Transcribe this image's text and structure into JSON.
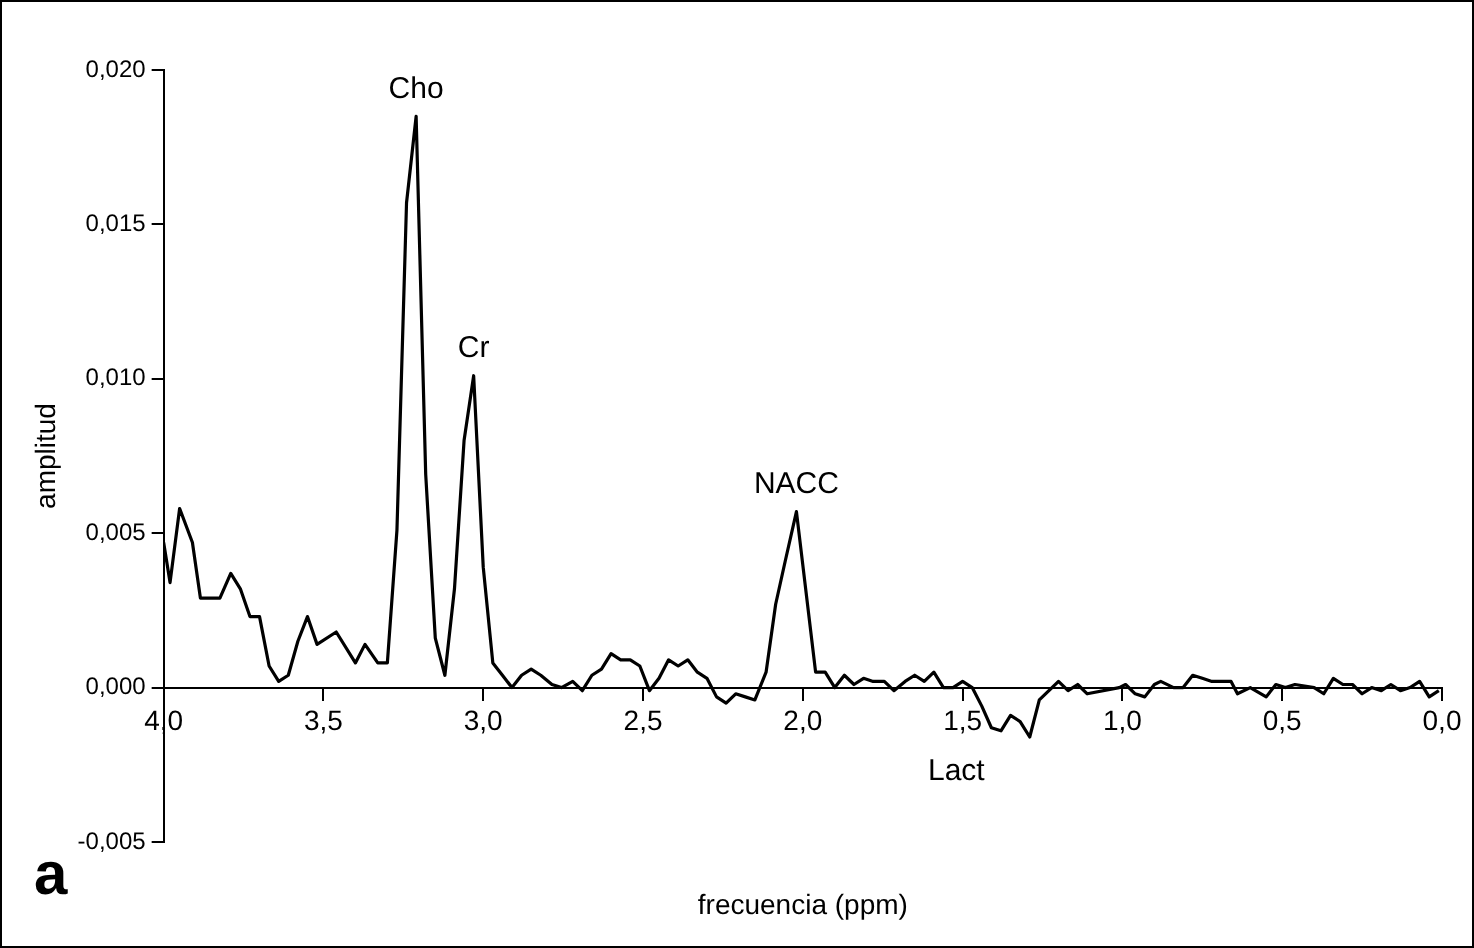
{
  "chart_data": {
    "type": "line",
    "xlabel": "frecuencia (ppm)",
    "ylabel": "amplitud",
    "x": [
      4.0,
      3.98,
      3.95,
      3.91,
      3.885,
      3.855,
      3.824,
      3.79,
      3.76,
      3.73,
      3.7,
      3.67,
      3.64,
      3.61,
      3.58,
      3.55,
      3.52,
      3.46,
      3.4,
      3.37,
      3.33,
      3.3,
      3.27,
      3.24,
      3.21,
      3.18,
      3.15,
      3.12,
      3.09,
      3.06,
      3.03,
      3.0,
      2.97,
      2.94,
      2.91,
      2.88,
      2.85,
      2.82,
      2.785,
      2.755,
      2.72,
      2.69,
      2.66,
      2.63,
      2.6,
      2.57,
      2.54,
      2.51,
      2.48,
      2.45,
      2.42,
      2.39,
      2.36,
      2.33,
      2.3,
      2.27,
      2.24,
      2.21,
      2.18,
      2.15,
      2.115,
      2.085,
      2.055,
      2.02,
      1.96,
      1.93,
      1.9,
      1.87,
      1.84,
      1.81,
      1.78,
      1.745,
      1.715,
      1.68,
      1.65,
      1.62,
      1.59,
      1.56,
      1.53,
      1.5,
      1.47,
      1.44,
      1.41,
      1.38,
      1.35,
      1.32,
      1.29,
      1.26,
      1.23,
      1.2,
      1.17,
      1.14,
      1.11,
      1.01,
      0.99,
      0.96,
      0.93,
      0.9,
      0.88,
      0.84,
      0.81,
      0.78,
      0.75,
      0.72,
      0.66,
      0.64,
      0.6,
      0.55,
      0.52,
      0.49,
      0.46,
      0.4,
      0.37,
      0.34,
      0.31,
      0.28,
      0.25,
      0.22,
      0.19,
      0.16,
      0.13,
      0.1,
      0.07,
      0.04,
      0.01
    ],
    "series": [
      {
        "color": "#000000",
        "values": [
          0.0047,
          0.0034,
          0.0058,
          0.0047,
          0.0029,
          0.0029,
          0.0029,
          0.0037,
          0.0032,
          0.0023,
          0.0023,
          0.0007,
          0.0002,
          0.0004,
          0.0015,
          0.0023,
          0.0014,
          0.0018,
          0.0008,
          0.0014,
          0.0008,
          0.0008,
          0.0051,
          0.0157,
          0.0185,
          0.0069,
          0.0016,
          0.0004,
          0.0032,
          0.008,
          0.0101,
          0.0039,
          0.0008,
          0.0004,
          0.0,
          0.0004,
          0.0006,
          0.0004,
          0.0001,
          0.0,
          0.0002,
          -0.0001,
          0.0004,
          0.0006,
          0.0011,
          0.0009,
          0.0009,
          0.0007,
          -0.0001,
          0.0003,
          0.0009,
          0.0007,
          0.0009,
          0.0005,
          0.0003,
          -0.0003,
          -0.0005,
          -0.0002,
          -0.0003,
          -0.0004,
          0.0005,
          0.0027,
          0.0041,
          0.0057,
          0.0005,
          0.0005,
          0.0,
          0.0004,
          0.0001,
          0.0003,
          0.0002,
          0.0002,
          -0.0001,
          0.0002,
          0.0004,
          0.0002,
          0.0005,
          0.0,
          0.0,
          0.0002,
          0.0,
          -0.0006,
          -0.0013,
          -0.0014,
          -0.0009,
          -0.0011,
          -0.0016,
          -0.0004,
          -0.0001,
          0.0002,
          -0.0001,
          0.0001,
          -0.0002,
          0.0,
          0.0001,
          -0.0002,
          -0.0003,
          0.0001,
          0.0002,
          0.0,
          0.0,
          0.0004,
          0.0003,
          0.0002,
          0.0002,
          -0.0002,
          0.0,
          -0.0003,
          0.0001,
          0.0,
          0.0001,
          0.0,
          -0.0002,
          0.0003,
          0.0001,
          0.0001,
          -0.0002,
          0.0,
          -0.0001,
          0.0001,
          -0.0001,
          0.0,
          0.0002,
          -0.0003,
          -0.0001
        ]
      }
    ],
    "xlim": [
      4.0,
      0.0
    ],
    "xticks": [
      {
        "value": 4.0,
        "label": "4,0"
      },
      {
        "value": 3.5,
        "label": "3,5"
      },
      {
        "value": 3.0,
        "label": "3,0"
      },
      {
        "value": 2.5,
        "label": "2,5"
      },
      {
        "value": 2.0,
        "label": "2,0"
      },
      {
        "value": 1.5,
        "label": "1,5"
      },
      {
        "value": 1.0,
        "label": "1,0"
      },
      {
        "value": 0.5,
        "label": "0,5"
      },
      {
        "value": 0.0,
        "label": "0,0"
      }
    ],
    "ylim": [
      -0.005,
      0.02
    ],
    "yticks": [
      {
        "value": -0.005,
        "label": "-0,005"
      },
      {
        "value": 0.0,
        "label": "0,000"
      },
      {
        "value": 0.005,
        "label": "0,005"
      },
      {
        "value": 0.01,
        "label": "0,010"
      },
      {
        "value": 0.015,
        "label": "0,015"
      },
      {
        "value": 0.02,
        "label": "0,020"
      }
    ],
    "grid": false,
    "legend": false,
    "marker": "none",
    "line_style": "solid",
    "annotations": [
      {
        "text": "Cho",
        "x": 3.21,
        "y": 0.0185
      },
      {
        "text": "Cr",
        "x": 3.03,
        "y": 0.0101
      },
      {
        "text": "NACC",
        "x": 2.02,
        "y": 0.0057
      },
      "Lact",
      "a"
    ]
  }
}
